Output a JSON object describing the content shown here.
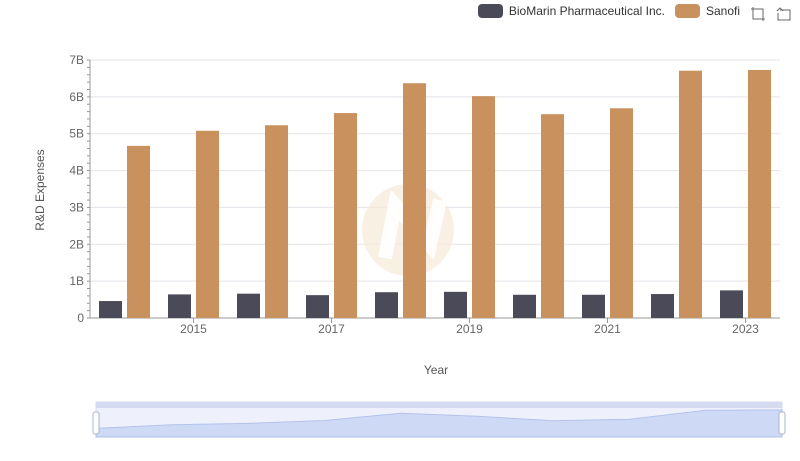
{
  "legend": {
    "items": [
      {
        "label": "BioMarin Pharmaceutical Inc.",
        "color": "#4a4a58"
      },
      {
        "label": "Sanofi",
        "color": "#c8915e"
      }
    ]
  },
  "toolbox": {
    "icons": [
      "zoom-icon",
      "reset-zoom-icon"
    ]
  },
  "chart_data": {
    "type": "bar",
    "xlabel": "Year",
    "ylabel": "R&D Expenses",
    "ylim": [
      0,
      7000000000
    ],
    "y_ticks": [
      "0",
      "1B",
      "2B",
      "3B",
      "4B",
      "5B",
      "6B",
      "7B"
    ],
    "x_tick_labels": [
      "2015",
      "2017",
      "2019",
      "2021",
      "2023"
    ],
    "categories": [
      "2014",
      "2015",
      "2016",
      "2017",
      "2018",
      "2019",
      "2020",
      "2021",
      "2022",
      "2023"
    ],
    "series": [
      {
        "name": "BioMarin Pharmaceutical Inc.",
        "color": "#4a4a58",
        "values": [
          460000000,
          640000000,
          660000000,
          620000000,
          700000000,
          710000000,
          630000000,
          630000000,
          650000000,
          750000000
        ]
      },
      {
        "name": "Sanofi",
        "color": "#c8915e",
        "values": [
          4670000000,
          5080000000,
          5230000000,
          5560000000,
          6370000000,
          6020000000,
          5530000000,
          5690000000,
          6710000000,
          6730000000
        ]
      }
    ],
    "grid": true,
    "legend_position": "top-right",
    "data_zoom_slider": true
  }
}
